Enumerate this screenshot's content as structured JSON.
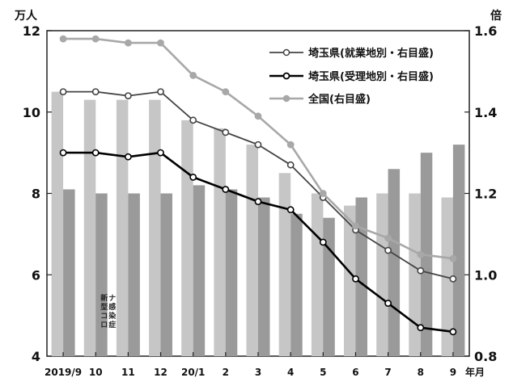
{
  "chart_data": {
    "type": "bar",
    "categories": [
      "2019/9",
      "10",
      "11",
      "12",
      "20/1",
      "2",
      "3",
      "4",
      "5",
      "6",
      "7",
      "8",
      "9"
    ],
    "x_suffix": "年月",
    "left_axis": {
      "unit": "万人",
      "ylim": [
        4,
        12
      ],
      "ticks": [
        "4",
        "6",
        "8",
        "10",
        "12"
      ]
    },
    "right_axis": {
      "unit": "倍",
      "ylim": [
        0.8,
        1.6
      ],
      "ticks": [
        "0.8",
        "1.0",
        "1.2",
        "1.4",
        "1.6"
      ]
    },
    "bar_series": [
      {
        "name": "",
        "values": [
          10.5,
          10.3,
          10.3,
          10.3,
          9.8,
          9.6,
          9.2,
          8.5,
          8.0,
          7.7,
          8.0,
          8.0,
          7.9
        ]
      },
      {
        "name": "",
        "values": [
          8.1,
          8.0,
          8.0,
          8.0,
          8.2,
          8.1,
          7.9,
          7.5,
          7.4,
          7.9,
          8.6,
          9.0,
          9.2
        ]
      }
    ],
    "line_series": [
      {
        "name": "埼玉県(就業地別・右目盛)",
        "axis": "right",
        "values": [
          1.45,
          1.45,
          1.44,
          1.45,
          1.38,
          1.35,
          1.32,
          1.27,
          1.19,
          1.11,
          1.06,
          1.01,
          0.99
        ]
      },
      {
        "name": "埼玉県(受理地別・右目盛)",
        "axis": "right",
        "values": [
          1.3,
          1.3,
          1.29,
          1.3,
          1.24,
          1.21,
          1.18,
          1.16,
          1.08,
          0.99,
          0.93,
          0.87,
          0.86
        ]
      },
      {
        "name": "全国(右目盛)",
        "axis": "right",
        "values": [
          1.58,
          1.58,
          1.57,
          1.57,
          1.49,
          1.45,
          1.39,
          1.32,
          1.2,
          1.12,
          1.09,
          1.05,
          1.04
        ]
      }
    ],
    "annotation": "新型コロナ感染症",
    "colors": {
      "bar1": "#c6c6c6",
      "bar2": "#9a9a9a",
      "line_pref_work": "#444444",
      "line_pref_accept": "#000000",
      "line_national": "#a8a8a8"
    }
  }
}
